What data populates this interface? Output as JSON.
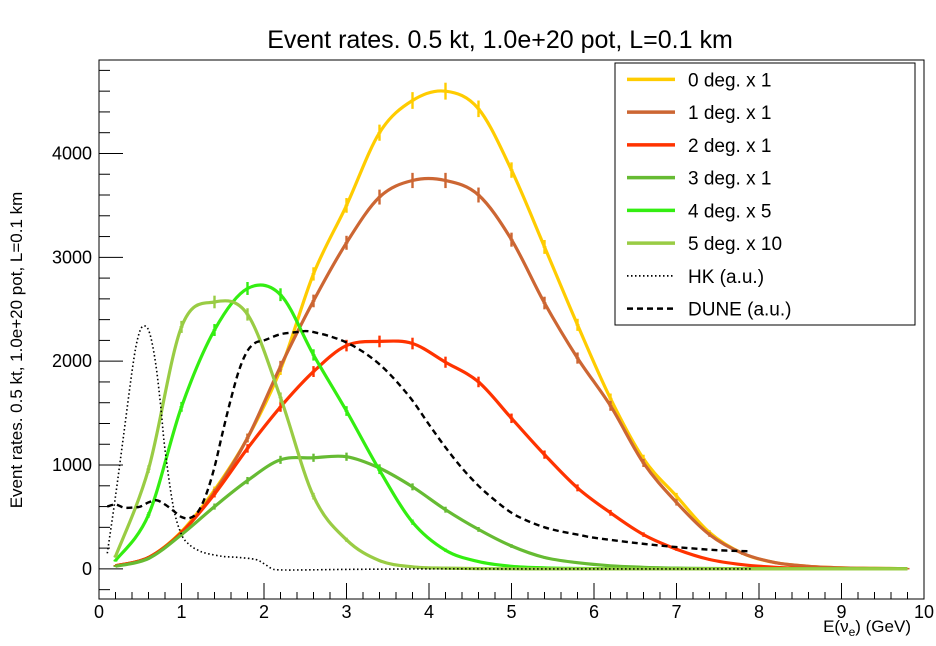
{
  "chart_data": {
    "type": "line",
    "title": "Event rates. 0.5 kt, 1.0e+20 pot, L=0.1 km",
    "xlabel": "E(ν",
    "xlabel_sub": "e",
    "xlabel_suffix": ") (GeV)",
    "ylabel": "Event rates. 0.5 kt, 1.0e+20 pot, L=0.1 km",
    "xlim": [
      0,
      10
    ],
    "ylim": [
      -290,
      4900
    ],
    "x_ticks": [
      "0",
      "1",
      "2",
      "3",
      "4",
      "5",
      "6",
      "7",
      "8",
      "9",
      "10"
    ],
    "y_ticks": [
      "0",
      "1000",
      "2000",
      "3000",
      "4000"
    ],
    "grid": false,
    "legend_position": "top-right",
    "series": [
      {
        "name": "0 deg. x 1",
        "color": "#ffcc00",
        "style": "solid",
        "error_bars": true,
        "x": [
          0.2,
          0.6,
          1.0,
          1.4,
          1.8,
          2.2,
          2.6,
          3.0,
          3.4,
          3.8,
          4.2,
          4.6,
          5.0,
          5.4,
          5.8,
          6.2,
          6.6,
          7.0,
          7.4,
          7.8,
          8.2,
          8.6,
          9.0,
          9.4,
          9.8
        ],
        "y": [
          30,
          110,
          360,
          760,
          1260,
          1920,
          2840,
          3500,
          4200,
          4510,
          4600,
          4430,
          3840,
          3100,
          2350,
          1640,
          1060,
          700,
          350,
          150,
          60,
          25,
          10,
          5,
          2
        ]
      },
      {
        "name": "1 deg. x 1",
        "color": "#cc6633",
        "style": "solid",
        "error_bars": true,
        "x": [
          0.2,
          0.6,
          1.0,
          1.4,
          1.8,
          2.2,
          2.6,
          3.0,
          3.4,
          3.8,
          4.2,
          4.6,
          5.0,
          5.4,
          5.8,
          6.2,
          6.6,
          7.0,
          7.4,
          7.8,
          8.2,
          8.6,
          9.0,
          9.4,
          9.8
        ],
        "y": [
          30,
          110,
          350,
          740,
          1260,
          1950,
          2580,
          3140,
          3580,
          3740,
          3740,
          3600,
          3170,
          2560,
          2030,
          1570,
          1020,
          640,
          330,
          150,
          60,
          25,
          10,
          5,
          2
        ]
      },
      {
        "name": "2 deg. x 1",
        "color": "#ff3300",
        "style": "solid",
        "error_bars": true,
        "x": [
          0.2,
          0.6,
          1.0,
          1.4,
          1.8,
          2.2,
          2.6,
          3.0,
          3.4,
          3.8,
          4.2,
          4.6,
          5.0,
          5.4,
          5.8,
          6.2,
          6.6,
          7.0,
          7.4,
          7.8,
          8.2,
          8.6,
          9.0,
          9.4,
          9.8
        ],
        "y": [
          30,
          110,
          350,
          720,
          1160,
          1560,
          1900,
          2150,
          2190,
          2170,
          1990,
          1800,
          1450,
          1100,
          780,
          540,
          330,
          190,
          90,
          40,
          15,
          5,
          2,
          1,
          0
        ]
      },
      {
        "name": "3 deg. x 1",
        "color": "#66bb33",
        "style": "solid",
        "error_bars": true,
        "x": [
          0.2,
          0.6,
          1.0,
          1.4,
          1.8,
          2.2,
          2.6,
          3.0,
          3.4,
          3.8,
          4.2,
          4.6,
          5.0,
          5.4,
          5.8,
          6.2,
          6.6,
          7.0,
          7.4,
          7.8,
          8.2,
          8.6,
          9.0,
          9.4,
          9.8
        ],
        "y": [
          25,
          100,
          330,
          600,
          850,
          1050,
          1070,
          1080,
          970,
          790,
          570,
          380,
          220,
          110,
          60,
          30,
          15,
          8,
          4,
          2,
          1,
          0,
          0,
          0,
          0
        ]
      },
      {
        "name": "4 deg. x 5",
        "color": "#33ee11",
        "style": "solid",
        "error_bars": true,
        "x": [
          0.2,
          0.6,
          1.0,
          1.4,
          1.8,
          2.2,
          2.6,
          3.0,
          3.4,
          3.8,
          4.2,
          4.6,
          5.0,
          5.4,
          5.8,
          6.2,
          6.6,
          7.0,
          7.4,
          7.8,
          8.2,
          8.6,
          9.0,
          9.4,
          9.8
        ],
        "y": [
          80,
          520,
          1560,
          2300,
          2700,
          2640,
          2060,
          1520,
          950,
          450,
          180,
          70,
          25,
          10,
          4,
          2,
          1,
          0,
          0,
          0,
          0,
          0,
          0,
          0,
          0
        ]
      },
      {
        "name": "5 deg. x 10",
        "color": "#99cc44",
        "style": "solid",
        "error_bars": true,
        "x": [
          0.2,
          0.6,
          1.0,
          1.4,
          1.8,
          2.2,
          2.6,
          3.0,
          3.4,
          3.8,
          4.2,
          4.6,
          5.0,
          5.4,
          5.8,
          6.2,
          6.6,
          7.0,
          7.4,
          7.8,
          8.2,
          8.6,
          9.0,
          9.4,
          9.8
        ],
        "y": [
          120,
          960,
          2330,
          2570,
          2450,
          1650,
          700,
          280,
          80,
          20,
          8,
          3,
          1,
          0,
          0,
          0,
          0,
          0,
          0,
          0,
          0,
          0,
          0,
          0,
          0
        ]
      },
      {
        "name": "HK (a.u.)",
        "color": "#000000",
        "style": "dotted",
        "error_bars": false,
        "x": [
          0.1,
          0.2,
          0.3,
          0.4,
          0.45,
          0.5,
          0.55,
          0.6,
          0.65,
          0.7,
          0.75,
          0.8,
          0.9,
          1.0,
          1.1,
          1.2,
          1.3,
          1.5,
          1.7,
          1.9,
          2.0,
          2.1,
          2.2,
          2.5,
          3.0,
          4.0,
          5.0,
          6.0,
          7.0,
          7.9
        ],
        "y": [
          150,
          700,
          1300,
          1900,
          2150,
          2300,
          2340,
          2300,
          2150,
          1900,
          1550,
          1150,
          600,
          330,
          230,
          180,
          150,
          120,
          110,
          90,
          50,
          0,
          -10,
          -10,
          -5,
          0,
          0,
          0,
          0,
          0
        ]
      },
      {
        "name": "DUNE (a.u.)",
        "color": "#000000",
        "style": "dashed",
        "error_bars": false,
        "x": [
          0.1,
          0.2,
          0.3,
          0.4,
          0.5,
          0.6,
          0.7,
          0.8,
          0.9,
          1.0,
          1.1,
          1.2,
          1.3,
          1.4,
          1.5,
          1.6,
          1.7,
          1.8,
          1.9,
          2.0,
          2.2,
          2.4,
          2.5,
          2.6,
          2.8,
          3.0,
          3.2,
          3.4,
          3.6,
          3.8,
          4.0,
          4.2,
          4.4,
          4.6,
          4.8,
          5.0,
          5.2,
          5.4,
          5.6,
          5.8,
          6.0,
          6.5,
          7.0,
          7.5,
          7.9
        ],
        "y": [
          600,
          620,
          590,
          590,
          600,
          640,
          660,
          620,
          560,
          500,
          490,
          550,
          720,
          980,
          1320,
          1640,
          1920,
          2100,
          2180,
          2200,
          2260,
          2280,
          2290,
          2280,
          2240,
          2180,
          2090,
          1970,
          1810,
          1620,
          1390,
          1170,
          970,
          800,
          660,
          540,
          460,
          400,
          360,
          330,
          300,
          250,
          210,
          180,
          170
        ]
      }
    ]
  }
}
